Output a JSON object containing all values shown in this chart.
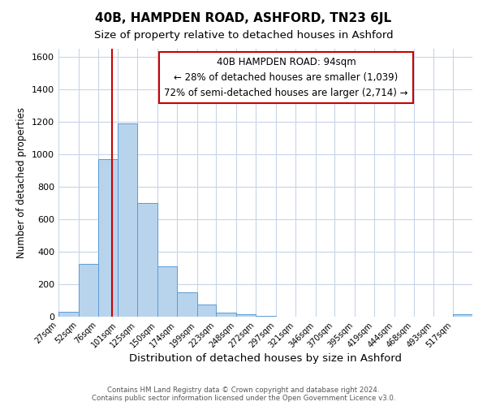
{
  "title": "40B, HAMPDEN ROAD, ASHFORD, TN23 6JL",
  "subtitle": "Size of property relative to detached houses in Ashford",
  "xlabel": "Distribution of detached houses by size in Ashford",
  "ylabel": "Number of detached properties",
  "bar_color": "#b8d4ed",
  "bar_edge_color": "#5b9bd5",
  "background_color": "#ffffff",
  "grid_color": "#c8d4e8",
  "ylim": [
    0,
    1650
  ],
  "yticks": [
    0,
    200,
    400,
    600,
    800,
    1000,
    1200,
    1400,
    1600
  ],
  "bin_labels": [
    "27sqm",
    "52sqm",
    "76sqm",
    "101sqm",
    "125sqm",
    "150sqm",
    "174sqm",
    "199sqm",
    "223sqm",
    "248sqm",
    "272sqm",
    "297sqm",
    "321sqm",
    "346sqm",
    "370sqm",
    "395sqm",
    "419sqm",
    "444sqm",
    "468sqm",
    "493sqm",
    "517sqm"
  ],
  "bar_heights": [
    28,
    325,
    968,
    1190,
    700,
    310,
    150,
    75,
    25,
    15,
    5,
    2,
    0,
    0,
    0,
    0,
    0,
    0,
    0,
    0,
    14
  ],
  "bin_edges": [
    27,
    52,
    76,
    101,
    125,
    150,
    174,
    199,
    223,
    248,
    272,
    297,
    321,
    346,
    370,
    395,
    419,
    444,
    468,
    493,
    517,
    541
  ],
  "property_line_x": 94,
  "property_line_color": "#cc0000",
  "annotation_line1": "40B HAMPDEN ROAD: 94sqm",
  "annotation_line2": "← 28% of detached houses are smaller (1,039)",
  "annotation_line3": "72% of semi-detached houses are larger (2,714) →",
  "annotation_box_color": "#ffffff",
  "annotation_box_edge": "#cc0000",
  "annotation_fontsize": 8.5,
  "footer_text": "Contains HM Land Registry data © Crown copyright and database right 2024.\nContains public sector information licensed under the Open Government Licence v3.0.",
  "title_fontsize": 11,
  "subtitle_fontsize": 9.5,
  "xlabel_fontsize": 9.5,
  "ylabel_fontsize": 8.5,
  "ytick_fontsize": 8,
  "xtick_fontsize": 7
}
